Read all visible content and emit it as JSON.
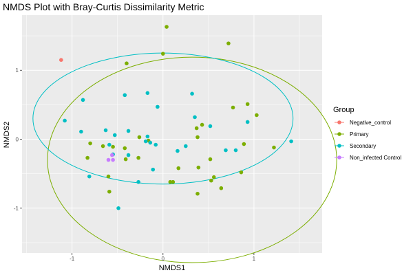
{
  "chart_data": {
    "type": "scatter",
    "title": "NMDS Plot with Bray-Curtis Dissimilarity Metric",
    "xlabel": "NMDS1",
    "ylabel": "NMDS2",
    "xlim": [
      -1.55,
      1.75
    ],
    "ylim": [
      -1.65,
      1.8
    ],
    "xticks": [
      -1,
      0,
      1
    ],
    "yticks": [
      -1,
      0,
      1
    ],
    "xtick_labels": [
      "-1",
      "0",
      "1"
    ],
    "ytick_labels": [
      "-1",
      "0",
      "1"
    ],
    "grid": true,
    "background": "#ebebeb",
    "legend": {
      "title": "Group",
      "placement": "right"
    },
    "series": [
      {
        "name": "Negative_control",
        "color": "#f8766d",
        "points": [
          [
            -1.12,
            1.15
          ]
        ]
      },
      {
        "name": "Primary",
        "color": "#7cae00",
        "points": [
          [
            0.04,
            1.63
          ],
          [
            0.72,
            1.39
          ],
          [
            0.0,
            1.24
          ],
          [
            -0.4,
            1.1
          ],
          [
            0.93,
            0.51
          ],
          [
            0.77,
            0.46
          ],
          [
            1.03,
            0.35
          ],
          [
            0.43,
            0.21
          ],
          [
            0.37,
            0.16
          ],
          [
            -0.26,
            0.03
          ],
          [
            -0.16,
            -0.02
          ],
          [
            0.38,
            0.03
          ],
          [
            -0.8,
            -0.06
          ],
          [
            -0.66,
            -0.1
          ],
          [
            -0.55,
            -0.11
          ],
          [
            -0.42,
            -0.13
          ],
          [
            0.89,
            -0.07
          ],
          [
            1.22,
            -0.12
          ],
          [
            -0.83,
            -0.27
          ],
          [
            -0.41,
            -0.29
          ],
          [
            -0.27,
            -0.27
          ],
          [
            0.52,
            -0.29
          ],
          [
            0.17,
            -0.42
          ],
          [
            0.39,
            -0.41
          ],
          [
            -0.6,
            -0.54
          ],
          [
            0.56,
            -0.55
          ],
          [
            0.53,
            -0.6
          ],
          [
            0.86,
            -0.48
          ],
          [
            0.08,
            -0.62
          ],
          [
            0.11,
            -0.62
          ],
          [
            0.64,
            -0.71
          ],
          [
            -0.59,
            -0.76
          ],
          [
            0.38,
            -0.79
          ]
        ]
      },
      {
        "name": "Secondary",
        "color": "#00bfc4",
        "points": [
          [
            -0.42,
            0.64
          ],
          [
            -0.17,
            0.67
          ],
          [
            0.32,
            0.66
          ],
          [
            -0.88,
            0.57
          ],
          [
            -0.06,
            0.47
          ],
          [
            0.35,
            0.32
          ],
          [
            -1.08,
            0.27
          ],
          [
            0.93,
            0.25
          ],
          [
            -0.9,
            0.11
          ],
          [
            -0.63,
            0.13
          ],
          [
            -0.38,
            0.12
          ],
          [
            -0.53,
            0.06
          ],
          [
            0.52,
            0.19
          ],
          [
            -0.17,
            0.04
          ],
          [
            -0.19,
            -0.03
          ],
          [
            -0.14,
            -0.05
          ],
          [
            -0.59,
            -0.08
          ],
          [
            0.25,
            -0.1
          ],
          [
            -0.08,
            -0.08
          ],
          [
            1.41,
            -0.03
          ],
          [
            0.69,
            -0.16
          ],
          [
            0.8,
            -0.16
          ],
          [
            0.16,
            -0.17
          ],
          [
            -0.55,
            -0.22
          ],
          [
            -0.38,
            -0.23
          ],
          [
            -0.11,
            -0.44
          ],
          [
            -0.81,
            -0.54
          ],
          [
            -0.27,
            -0.62
          ],
          [
            -0.49,
            -1.0
          ]
        ]
      },
      {
        "name": "Non_infected Control",
        "color": "#c77cff",
        "points": [
          [
            -0.56,
            -0.23
          ],
          [
            -0.6,
            -0.3
          ],
          [
            -0.55,
            -0.3
          ]
        ]
      }
    ],
    "ellipses": [
      {
        "group": "Primary",
        "color": "#7cae00",
        "center": [
          0.32,
          -0.3
        ],
        "radii": [
          1.59,
          1.49
        ],
        "angle": 0
      },
      {
        "group": "Secondary",
        "color": "#00bfc4",
        "center": [
          0.0,
          0.3
        ],
        "radii": [
          1.43,
          0.95
        ],
        "angle": 0
      }
    ]
  }
}
